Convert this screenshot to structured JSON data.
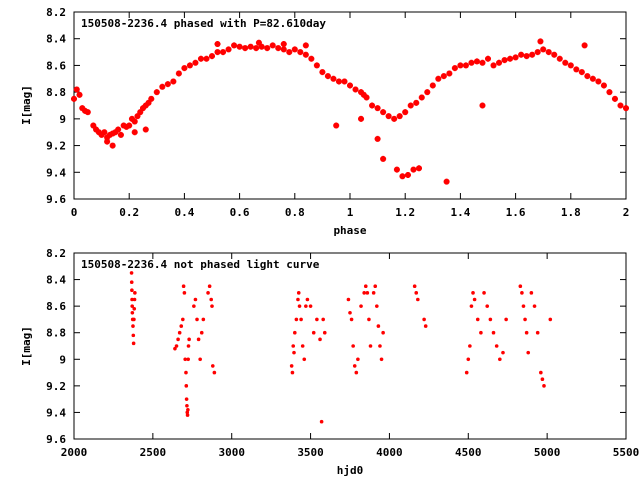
{
  "colors": {
    "points": "#ff0000",
    "axes": "#000000",
    "background": "#ffffff"
  },
  "chart_data": [
    {
      "type": "scatter",
      "title": "150508-2236.4 phased with P=82.610day",
      "xlabel": "phase",
      "ylabel": "I[mag]",
      "xlim": [
        0,
        2
      ],
      "ylim": [
        8.2,
        9.6
      ],
      "y_inverted": true,
      "grid": false,
      "legend": "none",
      "x_ticks": [
        "0",
        "0.2",
        "0.4",
        "0.6",
        "0.8",
        "1",
        "1.2",
        "1.4",
        "1.6",
        "1.8",
        "2"
      ],
      "y_ticks": [
        "8.2",
        "8.4",
        "8.6",
        "8.8",
        "9",
        "9.2",
        "9.4",
        "9.6"
      ],
      "x": [
        0.0,
        0.01,
        0.02,
        0.04,
        0.05,
        0.07,
        0.08,
        0.09,
        0.1,
        0.11,
        0.12,
        0.13,
        0.14,
        0.15,
        0.16,
        0.17,
        0.18,
        0.19,
        0.2,
        0.21,
        0.22,
        0.23,
        0.24,
        0.25,
        0.26,
        0.27,
        0.28,
        0.3,
        0.32,
        0.34,
        0.36,
        0.38,
        0.4,
        0.42,
        0.44,
        0.46,
        0.48,
        0.5,
        0.52,
        0.54,
        0.56,
        0.58,
        0.6,
        0.62,
        0.64,
        0.66,
        0.68,
        0.7,
        0.72,
        0.74,
        0.76,
        0.78,
        0.8,
        0.82,
        0.84,
        0.86,
        0.88,
        0.9,
        0.92,
        0.94,
        0.96,
        0.98,
        1.0,
        1.02,
        1.04,
        1.05,
        1.06,
        1.08,
        1.1,
        1.12,
        1.14,
        1.16,
        1.18,
        1.2,
        1.22,
        1.24,
        1.26,
        1.28,
        1.3,
        1.32,
        1.34,
        1.36,
        1.38,
        1.4,
        1.42,
        1.44,
        1.46,
        1.48,
        1.5,
        1.52,
        1.54,
        1.56,
        1.58,
        1.6,
        1.62,
        1.64,
        1.66,
        1.68,
        1.7,
        1.72,
        1.74,
        1.76,
        1.78,
        1.8,
        1.82,
        1.84,
        1.86,
        1.88,
        1.9,
        1.92,
        1.94,
        1.96,
        1.98,
        2.0,
        0.03,
        0.12,
        0.14,
        0.22,
        0.26,
        0.52,
        0.67,
        0.76,
        0.84,
        0.95,
        1.04,
        1.1,
        1.12,
        1.17,
        1.19,
        1.21,
        1.23,
        1.25,
        1.35,
        1.48,
        1.69,
        1.85
      ],
      "y": [
        8.85,
        8.78,
        8.82,
        8.94,
        8.95,
        9.05,
        9.08,
        9.1,
        9.12,
        9.1,
        9.14,
        9.12,
        9.11,
        9.1,
        9.08,
        9.12,
        9.05,
        9.06,
        9.05,
        9.0,
        9.02,
        8.98,
        8.95,
        8.92,
        8.9,
        8.88,
        8.85,
        8.8,
        8.76,
        8.74,
        8.72,
        8.66,
        8.62,
        8.6,
        8.58,
        8.55,
        8.55,
        8.53,
        8.5,
        8.5,
        8.48,
        8.45,
        8.46,
        8.47,
        8.46,
        8.47,
        8.46,
        8.47,
        8.45,
        8.47,
        8.48,
        8.5,
        8.48,
        8.5,
        8.52,
        8.55,
        8.6,
        8.65,
        8.68,
        8.7,
        8.72,
        8.72,
        8.75,
        8.78,
        8.8,
        8.82,
        8.84,
        8.9,
        8.92,
        8.95,
        8.98,
        9.0,
        8.98,
        8.95,
        8.9,
        8.88,
        8.84,
        8.8,
        8.75,
        8.7,
        8.68,
        8.66,
        8.62,
        8.6,
        8.6,
        8.58,
        8.57,
        8.58,
        8.55,
        8.6,
        8.58,
        8.56,
        8.55,
        8.54,
        8.52,
        8.53,
        8.52,
        8.5,
        8.48,
        8.5,
        8.52,
        8.55,
        8.58,
        8.6,
        8.63,
        8.65,
        8.68,
        8.7,
        8.72,
        8.75,
        8.8,
        8.85,
        8.9,
        8.92,
        8.92,
        9.17,
        9.2,
        9.1,
        9.08,
        8.44,
        8.43,
        8.44,
        8.45,
        9.05,
        9.0,
        9.15,
        9.3,
        9.38,
        9.43,
        9.42,
        9.38,
        9.37,
        9.47,
        8.9,
        8.42,
        8.45
      ]
    },
    {
      "type": "scatter",
      "title": "150508-2236.4 not phased light curve",
      "xlabel": "hjd0",
      "ylabel": "I[mag]",
      "xlim": [
        2000,
        5500
      ],
      "ylim": [
        8.2,
        9.6
      ],
      "y_inverted": true,
      "grid": false,
      "legend": "none",
      "x_ticks": [
        "2000",
        "2500",
        "3000",
        "3500",
        "4000",
        "4500",
        "5000",
        "5500"
      ],
      "y_ticks": [
        "8.2",
        "8.4",
        "8.6",
        "8.8",
        "9",
        "9.2",
        "9.4",
        "9.6"
      ],
      "x": [
        2365,
        2366,
        2367,
        2368,
        2369,
        2370,
        2372,
        2374,
        2376,
        2378,
        2380,
        2382,
        2384,
        2386,
        2640,
        2650,
        2660,
        2670,
        2680,
        2690,
        2695,
        2700,
        2705,
        2710,
        2712,
        2714,
        2716,
        2718,
        2720,
        2722,
        2724,
        2726,
        2730,
        2760,
        2770,
        2780,
        2790,
        2800,
        2810,
        2820,
        2850,
        2860,
        2870,
        2875,
        2880,
        2890,
        3380,
        3385,
        3390,
        3395,
        3400,
        3410,
        3420,
        3425,
        3430,
        3440,
        3450,
        3460,
        3470,
        3480,
        3500,
        3520,
        3540,
        3560,
        3570,
        3580,
        3590,
        3740,
        3750,
        3760,
        3770,
        3780,
        3790,
        3800,
        3820,
        3840,
        3850,
        3860,
        3870,
        3880,
        3900,
        3910,
        3920,
        3930,
        3940,
        3950,
        3960,
        4160,
        4170,
        4180,
        4220,
        4230,
        4490,
        4500,
        4510,
        4520,
        4530,
        4540,
        4560,
        4580,
        4600,
        4620,
        4640,
        4660,
        4680,
        4700,
        4720,
        4740,
        4830,
        4840,
        4850,
        4860,
        4870,
        4880,
        4900,
        4920,
        4940,
        4960,
        4970,
        4980,
        5020
      ],
      "y": [
        8.35,
        8.42,
        8.48,
        8.55,
        8.6,
        8.65,
        8.7,
        8.75,
        8.82,
        8.88,
        8.7,
        8.62,
        8.55,
        8.5,
        8.92,
        8.9,
        8.85,
        8.8,
        8.75,
        8.7,
        8.45,
        8.5,
        9.0,
        9.1,
        9.2,
        9.3,
        9.35,
        9.4,
        9.42,
        9.38,
        9.0,
        8.9,
        8.85,
        8.6,
        8.55,
        8.7,
        8.85,
        9.0,
        8.8,
        8.7,
        8.5,
        8.45,
        8.55,
        8.6,
        9.05,
        9.1,
        9.05,
        9.1,
        8.9,
        8.95,
        8.8,
        8.7,
        8.55,
        8.5,
        8.6,
        8.7,
        8.9,
        9.0,
        8.6,
        8.55,
        8.6,
        8.8,
        8.7,
        8.85,
        9.47,
        8.7,
        8.8,
        8.55,
        8.65,
        8.7,
        8.9,
        9.05,
        9.1,
        9.0,
        8.6,
        8.5,
        8.45,
        8.5,
        8.7,
        8.9,
        8.5,
        8.45,
        8.6,
        8.75,
        8.9,
        9.0,
        8.8,
        8.45,
        8.5,
        8.55,
        8.7,
        8.75,
        9.1,
        9.0,
        8.9,
        8.6,
        8.5,
        8.55,
        8.7,
        8.8,
        8.5,
        8.6,
        8.7,
        8.8,
        8.9,
        9.0,
        8.95,
        8.7,
        8.45,
        8.5,
        8.6,
        8.7,
        8.8,
        8.95,
        8.5,
        8.6,
        8.8,
        9.1,
        9.15,
        9.2,
        8.7
      ]
    }
  ]
}
